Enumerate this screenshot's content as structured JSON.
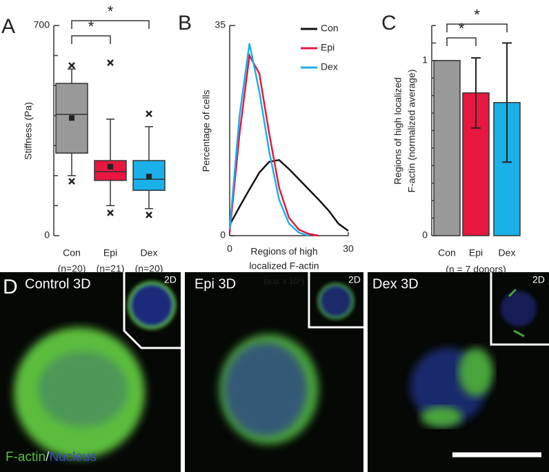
{
  "chart_data": [
    {
      "type": "box",
      "panel": "A",
      "ylabel": "Stiffness (Pa)",
      "categories": [
        "Con",
        "Epi",
        "Dex"
      ],
      "n_labels": [
        "(n=20)",
        "(n=21)",
        "(n=20)"
      ],
      "colors": [
        "#999999",
        "#e8173f",
        "#1ab0e8"
      ],
      "boxes": [
        {
          "whisker_low": 200,
          "q1": 275,
          "median": 404,
          "q3": 507,
          "whisker_high": 555,
          "mean": 392,
          "outliers": [
            181,
            567
          ]
        },
        {
          "whisker_low": 100,
          "q1": 184,
          "median": 213,
          "q3": 250,
          "whisker_high": 388,
          "mean": 230,
          "outliers": [
            76,
            576
          ]
        },
        {
          "whisker_low": 90,
          "q1": 151,
          "median": 188,
          "q3": 250,
          "whisker_high": 363,
          "mean": 197,
          "outliers": [
            69,
            406
          ]
        }
      ],
      "ylim": [
        0,
        700
      ],
      "yticks": [
        0,
        700
      ],
      "minor_yticks": [
        100,
        200,
        300,
        400,
        500,
        600
      ],
      "significance": [
        {
          "pair": [
            "Con",
            "Epi"
          ],
          "label": "*"
        },
        {
          "pair": [
            "Con",
            "Dex"
          ],
          "label": "*"
        }
      ]
    },
    {
      "type": "line",
      "panel": "B",
      "ylabel": "Percentage of cells",
      "xlabel": [
        "Regions of high",
        "localized F-actin"
      ],
      "xlabel_unit": "(a.u. x 10⁵)",
      "x": [
        0,
        2.5,
        5,
        7.5,
        10,
        12.5,
        15,
        17.5,
        20,
        22.5,
        25,
        27.5,
        30
      ],
      "series": [
        {
          "name": "Con",
          "color": "#111111",
          "values": [
            1.8,
            4.8,
            7.7,
            10.5,
            12.3,
            12.6,
            11.1,
            9.4,
            7.7,
            6,
            4.2,
            2,
            0.8
          ]
        },
        {
          "name": "Epi",
          "color": "#e8173f",
          "values": [
            0.5,
            17,
            30,
            27,
            17,
            8,
            3,
            1,
            0.3,
            0,
            null,
            null,
            null
          ]
        },
        {
          "name": "Dex",
          "color": "#1ab0e8",
          "values": [
            1,
            20,
            32,
            24,
            14,
            6,
            2,
            0.5,
            0,
            null,
            null,
            null,
            null
          ]
        }
      ],
      "xlim": [
        0,
        30
      ],
      "xticks": [
        0,
        30
      ],
      "ylim": [
        0,
        35
      ],
      "yticks": [
        0,
        35
      ],
      "legend": "upper right"
    },
    {
      "type": "bar",
      "panel": "C",
      "ylabel": [
        "Regions of high localized",
        "F-actin (normalized average)"
      ],
      "xlabel": "(n = 7 donors)",
      "categories": [
        "Con",
        "Epi",
        "Dex"
      ],
      "values": [
        1,
        0.815,
        0.76
      ],
      "errors": [
        null,
        0.2,
        0.34
      ],
      "colors": [
        "#999999",
        "#e8173f",
        "#1ab0e8"
      ],
      "ylim": [
        0,
        1.2
      ],
      "yticks": [
        0,
        1
      ],
      "minor_yticks": [
        0.1,
        0.2,
        0.3,
        0.4,
        0.5,
        0.6,
        0.7,
        0.8,
        0.9,
        1.1,
        1.2
      ],
      "significance": [
        {
          "pair": [
            "Con",
            "Epi"
          ],
          "label": "*"
        },
        {
          "pair": [
            "Con",
            "Dex"
          ],
          "label": "*"
        }
      ]
    }
  ],
  "panel_d": {
    "panel": "D",
    "images": [
      {
        "title": "Control 3D",
        "inset": "2D"
      },
      {
        "title": "Epi 3D",
        "inset": "2D"
      },
      {
        "title": "Dex 3D",
        "inset": "2D"
      }
    ],
    "legend": [
      "F-actin",
      "/",
      "Nucleus"
    ]
  }
}
